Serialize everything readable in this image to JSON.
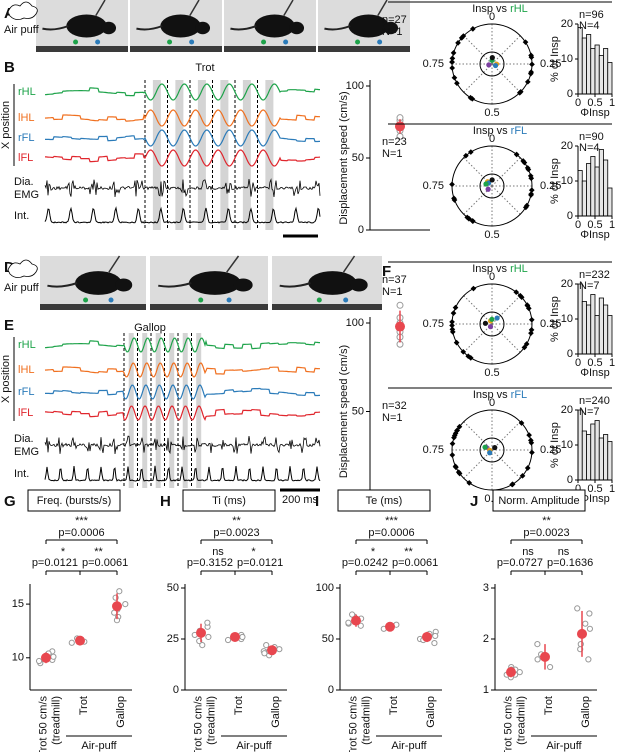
{
  "panel_labels": [
    "A",
    "B",
    "C",
    "D",
    "E",
    "F",
    "G",
    "H",
    "I",
    "J"
  ],
  "A": {
    "stimulus": "Air puff"
  },
  "B": {
    "gait": "Trot",
    "traces": [
      "rHL",
      "lHL",
      "rFL",
      "lFL"
    ],
    "trace_axis": "X position",
    "emg": [
      "Dia.",
      "EMG"
    ],
    "integrated": "Int.",
    "speed": {
      "ylabel": "Displacement speed (cm/s)",
      "ylim": [
        0,
        100
      ],
      "yticks": [
        0,
        50,
        100
      ],
      "mean": 72,
      "error": 5,
      "points": [
        65,
        69,
        76,
        78,
        71
      ]
    }
  },
  "C": {
    "plots": [
      {
        "title": "Insp vs",
        "limb": "rHL",
        "polar_n": "n=27",
        "polar_N": "N=1",
        "phase_labels": [
          "0",
          "0.25",
          "0.5",
          "0.75"
        ],
        "hist": {
          "n": "n=96",
          "N": "N=4",
          "ylabel": "% of Insp",
          "xlabel": "ΦInsp",
          "bins": [
            0,
            0.125,
            0.25,
            0.375,
            0.5,
            0.625,
            0.75,
            0.875,
            1
          ],
          "counts": [
            19,
            16,
            17,
            13,
            14,
            11,
            13,
            9
          ],
          "ylim": [
            0,
            20
          ],
          "yticks": [
            0,
            10,
            20
          ],
          "xlim": [
            0,
            1
          ],
          "xticks": [
            0,
            0.5,
            1
          ]
        }
      },
      {
        "title": "Insp vs",
        "limb": "rFL",
        "polar_n": "n=23",
        "polar_N": "N=1",
        "phase_labels": [
          "0",
          "0.25",
          "0.5",
          "0.75"
        ],
        "hist": {
          "n": "n=90",
          "N": "N=4",
          "ylabel": "% of Insp",
          "xlabel": "ΦInsp",
          "bins": [
            0,
            0.125,
            0.25,
            0.375,
            0.5,
            0.625,
            0.75,
            0.875,
            1
          ],
          "counts": [
            13,
            10,
            15,
            17,
            14,
            19,
            16,
            8
          ],
          "ylim": [
            0,
            20
          ],
          "yticks": [
            0,
            10,
            20
          ],
          "xlim": [
            0,
            1
          ],
          "xticks": [
            0,
            0.5,
            1
          ]
        }
      }
    ]
  },
  "D": {
    "stimulus": "Air puff"
  },
  "E": {
    "gait": "Gallop",
    "traces": [
      "rHL",
      "lHL",
      "rFL",
      "lFL"
    ],
    "trace_axis": "X position",
    "emg": [
      "Dia.",
      "EMG"
    ],
    "integrated": "Int.",
    "scalebar": "200 ms",
    "speed": {
      "ylabel": "Displacement speed (cm/s)",
      "ylim": [
        0,
        100
      ],
      "yticks": [
        0,
        50,
        100
      ],
      "mean": 98,
      "error": 9,
      "points": [
        88,
        95,
        103,
        110,
        100,
        92
      ]
    }
  },
  "F": {
    "plots": [
      {
        "title": "Insp vs",
        "limb": "rHL",
        "polar_n": "n=37",
        "polar_N": "N=1",
        "phase_labels": [
          "0",
          "0.25",
          "0.5",
          "0.75"
        ],
        "hist": {
          "n": "n=232",
          "N": "N=7",
          "ylabel": "% of Insp",
          "xlabel": "ΦInsp",
          "bins": [
            0,
            0.125,
            0.25,
            0.375,
            0.5,
            0.625,
            0.75,
            0.875,
            1
          ],
          "counts": [
            20,
            15,
            14,
            17,
            11,
            16,
            14,
            11
          ],
          "ylim": [
            0,
            20
          ],
          "yticks": [
            0,
            10,
            20
          ],
          "xlim": [
            0,
            1
          ],
          "xticks": [
            0,
            0.5,
            1
          ]
        }
      },
      {
        "title": "Insp vs",
        "limb": "rFL",
        "polar_n": "n=32",
        "polar_N": "N=1",
        "phase_labels": [
          "0",
          "0.25",
          "0.5",
          "0.75"
        ],
        "hist": {
          "n": "n=240",
          "N": "N=7",
          "ylabel": "% of Insp",
          "xlabel": "ΦInsp",
          "bins": [
            0,
            0.125,
            0.25,
            0.375,
            0.5,
            0.625,
            0.75,
            0.875,
            1
          ],
          "counts": [
            20,
            14,
            13,
            16,
            17,
            12,
            13,
            11
          ],
          "ylim": [
            0,
            20
          ],
          "yticks": [
            0,
            10,
            20
          ],
          "xlim": [
            0,
            1
          ],
          "xticks": [
            0,
            0.5,
            1
          ]
        }
      }
    ]
  },
  "stats": [
    {
      "title": "Freq. (bursts/s)",
      "categories": [
        [
          "Trot 50 cm/s",
          "(treadmill)"
        ],
        [
          "Trot"
        ],
        [
          "Gallop"
        ]
      ],
      "group_label": "Air-puff",
      "comparisons": [
        {
          "stars": "***",
          "p": "p=0.0006"
        },
        {
          "stars": "*",
          "p": "p=0.0121"
        },
        {
          "stars": "**",
          "p": "p=0.0061"
        }
      ],
      "ylim": [
        7,
        16.5
      ],
      "yticks": [
        10,
        15
      ],
      "means": [
        10,
        11.6,
        14.8
      ],
      "errors": [
        0.5,
        0.3,
        1.2
      ],
      "points": [
        [
          9.5,
          10.2,
          10.6,
          9.8,
          10.1,
          9.7,
          10.4
        ],
        [
          11.5,
          11.7,
          11.8,
          11.4
        ],
        [
          13.8,
          14.5,
          15.6,
          16.2,
          14.2,
          15.0,
          13.5
        ]
      ]
    },
    {
      "title": "Ti (ms)",
      "categories": [
        [
          "Trot 50 cm/s",
          "(treadmill)"
        ],
        [
          "Trot"
        ],
        [
          "Gallop"
        ]
      ],
      "group_label": "Air-puff",
      "comparisons": [
        {
          "stars": "**",
          "p": "p=0.0023"
        },
        {
          "stars": "ns",
          "p": "p=0.3152"
        },
        {
          "stars": "*",
          "p": "p=0.0121"
        }
      ],
      "ylim": [
        0,
        50
      ],
      "yticks": [
        0,
        25,
        50
      ],
      "means": [
        28,
        26,
        19.5
      ],
      "errors": [
        4.5,
        1.5,
        2
      ],
      "points": [
        [
          24,
          31,
          27,
          22,
          33,
          29,
          26
        ],
        [
          25,
          27,
          26,
          24.5
        ],
        [
          17,
          19,
          22,
          21,
          18,
          20,
          19
        ]
      ]
    },
    {
      "title": "Te (ms)",
      "categories": [
        [
          "Trot 50 cm/s",
          "(treadmill)"
        ],
        [
          "Trot"
        ],
        [
          "Gallop"
        ]
      ],
      "group_label": "Air-puff",
      "comparisons": [
        {
          "stars": "***",
          "p": "p=0.0006"
        },
        {
          "stars": "*",
          "p": "p=0.0242"
        },
        {
          "stars": "**",
          "p": "p=0.0061"
        }
      ],
      "ylim": [
        0,
        100
      ],
      "yticks": [
        0,
        50,
        100
      ],
      "means": [
        68,
        62,
        52
      ],
      "errors": [
        6,
        3,
        5
      ],
      "points": [
        [
          63,
          72,
          70,
          65,
          66,
          74,
          68
        ],
        [
          60,
          63,
          64,
          61
        ],
        [
          46,
          50,
          55,
          57,
          49,
          53,
          52
        ]
      ]
    },
    {
      "title": "Norm. Amplitude",
      "categories": [
        [
          "Trot 50 cm/s",
          "(treadmill)"
        ],
        [
          "Trot"
        ],
        [
          "Gallop"
        ]
      ],
      "group_label": "Air-puff",
      "comparisons": [
        {
          "stars": "**",
          "p": "p=0.0023"
        },
        {
          "stars": "ns",
          "p": "p=0.0727"
        },
        {
          "stars": "ns",
          "p": "p=0.1636"
        }
      ],
      "ylim": [
        1,
        3
      ],
      "yticks": [
        1,
        2,
        3
      ],
      "means": [
        1.35,
        1.65,
        2.1
      ],
      "errors": [
        0.1,
        0.25,
        0.45
      ],
      "points": [
        [
          1.3,
          1.4,
          1.25,
          1.45,
          1.35,
          1.3,
          1.4
        ],
        [
          1.45,
          1.6,
          1.9,
          1.7
        ],
        [
          1.6,
          1.9,
          2.5,
          2.2,
          1.8,
          2.6,
          2.3
        ]
      ]
    }
  ]
}
